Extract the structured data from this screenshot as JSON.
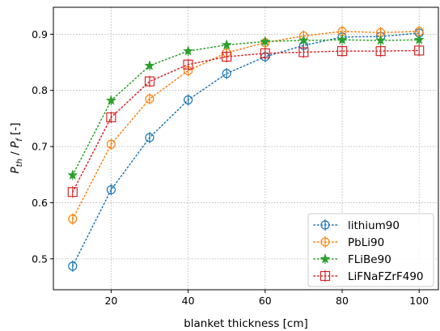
{
  "chart_data": {
    "type": "line",
    "xlabel": "blanket thickness [cm]",
    "ylabel": {
      "base1": "P",
      "sub1": "th",
      "sep": " / ",
      "base2": "P",
      "sub2": "f",
      "unit": " [-]"
    },
    "xlim": [
      5,
      105
    ],
    "ylim": [
      0.445,
      0.948
    ],
    "xticks": [
      20,
      40,
      60,
      80,
      100
    ],
    "yticks": [
      0.5,
      0.6,
      0.7,
      0.8,
      0.9
    ],
    "grid": true,
    "legend_position": "lower-right",
    "x": [
      10,
      20,
      30,
      40,
      50,
      60,
      70,
      80,
      90,
      100
    ],
    "series": [
      {
        "name": "lithium90",
        "color": "#1f77b4",
        "marker": "circle-bar",
        "values": [
          0.487,
          0.623,
          0.716,
          0.783,
          0.83,
          0.86,
          0.88,
          0.895,
          0.896,
          0.902
        ]
      },
      {
        "name": "PbLi90",
        "color": "#ff7f0e",
        "marker": "octagon-bar",
        "values": [
          0.571,
          0.704,
          0.785,
          0.835,
          0.867,
          0.885,
          0.897,
          0.905,
          0.903,
          0.905
        ]
      },
      {
        "name": "FLiBe90",
        "color": "#2ca02c",
        "marker": "star",
        "values": [
          0.649,
          0.782,
          0.844,
          0.87,
          0.881,
          0.887,
          0.889,
          0.89,
          0.889,
          0.89
        ]
      },
      {
        "name": "LiFNaFZrF490",
        "color": "#d62728",
        "marker": "square-bar",
        "values": [
          0.619,
          0.752,
          0.816,
          0.846,
          0.86,
          0.866,
          0.868,
          0.87,
          0.87,
          0.871
        ]
      }
    ]
  }
}
